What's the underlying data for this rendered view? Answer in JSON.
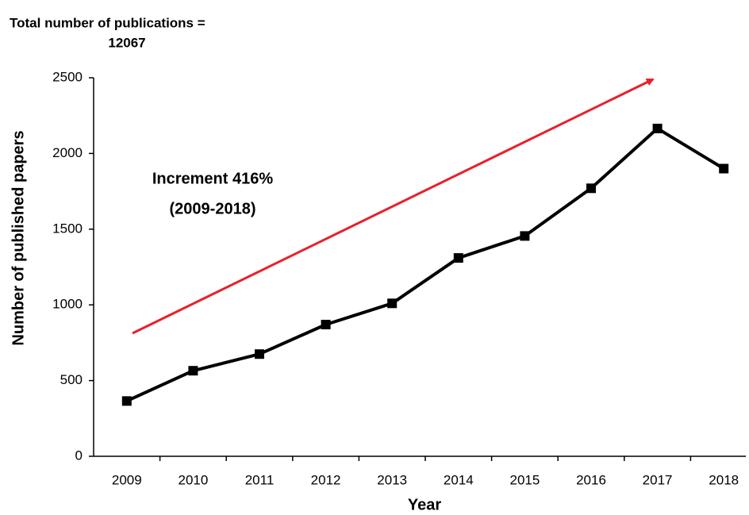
{
  "chart_data": {
    "type": "line",
    "title": [
      "Total number of publications =",
      "12067"
    ],
    "annotation": [
      "Increment 416%",
      "(2009-2018)"
    ],
    "annotation_color": "#e8202a",
    "x_label": "Year",
    "y_label": "Number of published papers",
    "categories": [
      "2009",
      "2010",
      "2011",
      "2012",
      "2013",
      "2014",
      "2015",
      "2016",
      "2017",
      "2018"
    ],
    "series": [
      {
        "color": "#000000",
        "values": [
          365,
          565,
          675,
          870,
          1010,
          1310,
          1455,
          1770,
          2165,
          1900
        ]
      }
    ],
    "ylim": [
      0,
      2500
    ],
    "yticks": [
      0,
      500,
      1000,
      1500,
      2000,
      2500
    ]
  }
}
